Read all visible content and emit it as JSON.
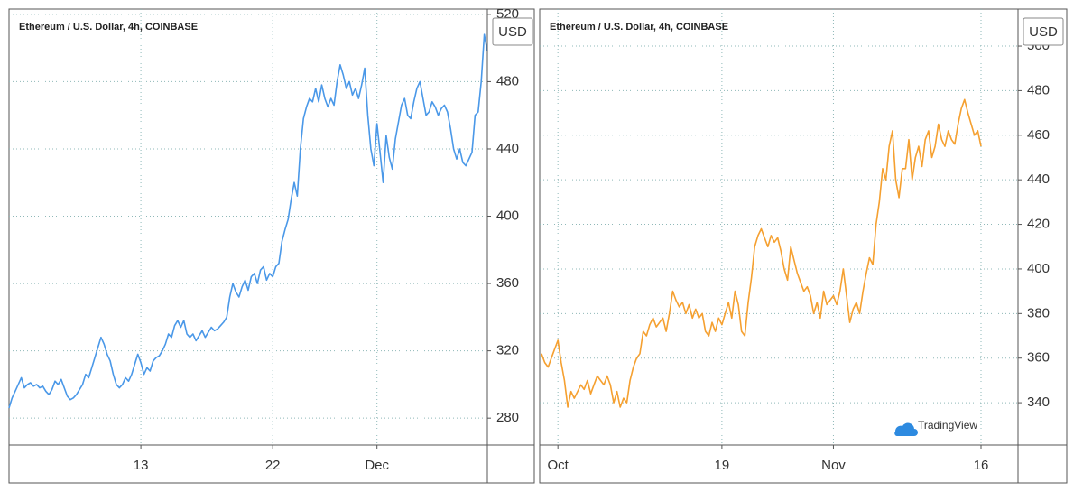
{
  "chart_data": [
    {
      "type": "line",
      "title": "Ethereum / U.S. Dollar, 4h, COINBASE",
      "unit": "USD",
      "color": "#4a98e8",
      "ylim": [
        264,
        521
      ],
      "yticks": [
        280,
        320,
        360,
        400,
        440,
        480,
        520
      ],
      "grid": true,
      "categories": [
        null,
        null,
        null,
        null,
        null,
        null,
        null,
        null,
        null,
        null,
        null,
        null,
        null,
        null,
        null,
        null,
        null,
        null,
        null,
        null,
        null,
        null,
        null,
        null,
        null,
        null,
        null,
        null,
        null,
        null,
        null,
        null,
        null,
        null,
        null,
        null,
        null,
        null,
        null,
        null,
        null,
        null,
        null,
        "13",
        null,
        null,
        null,
        null,
        null,
        null,
        null,
        null,
        null,
        null,
        null,
        null,
        null,
        null,
        null,
        null,
        null,
        null,
        null,
        null,
        null,
        null,
        null,
        null,
        null,
        null,
        null,
        null,
        null,
        null,
        null,
        null,
        null,
        null,
        null,
        null,
        null,
        null,
        null,
        null,
        null,
        null,
        "22",
        null,
        null,
        null,
        null,
        null,
        null,
        null,
        null,
        null,
        null,
        null,
        null,
        null,
        null,
        null,
        null,
        null,
        null,
        null,
        null,
        null,
        null,
        null,
        null,
        null,
        null,
        null,
        null,
        null,
        null,
        null,
        null,
        null,
        "Dec",
        null,
        null,
        null,
        null,
        null,
        null,
        null,
        null,
        null,
        null,
        null,
        null,
        null,
        null,
        null,
        null,
        null,
        null,
        null,
        null,
        null,
        null,
        null,
        null,
        null,
        null,
        null,
        null,
        null,
        null,
        null,
        null,
        null,
        null,
        null,
        null
      ],
      "values": [
        286,
        292,
        296,
        300,
        304,
        298,
        300,
        301,
        299,
        300,
        298,
        299,
        296,
        294,
        297,
        302,
        300,
        303,
        298,
        293,
        291,
        292,
        294,
        297,
        300,
        306,
        304,
        310,
        316,
        322,
        328,
        324,
        318,
        314,
        306,
        300,
        298,
        300,
        304,
        302,
        306,
        312,
        318,
        313,
        306,
        310,
        308,
        314,
        316,
        317,
        320,
        324,
        330,
        328,
        335,
        338,
        334,
        338,
        330,
        328,
        330,
        326,
        329,
        332,
        328,
        331,
        334,
        332,
        333,
        335,
        337,
        340,
        352,
        360,
        355,
        352,
        358,
        362,
        356,
        364,
        366,
        360,
        368,
        370,
        362,
        366,
        364,
        370,
        372,
        385,
        392,
        398,
        410,
        420,
        412,
        440,
        458,
        465,
        470,
        468,
        476,
        468,
        478,
        470,
        465,
        470,
        466,
        480,
        490,
        484,
        476,
        480,
        472,
        476,
        470,
        478,
        488,
        460,
        440,
        430,
        455,
        438,
        420,
        448,
        435,
        428,
        446,
        456,
        466,
        470,
        460,
        458,
        468,
        476,
        480,
        470,
        460,
        462,
        468,
        465,
        460,
        464,
        466,
        462,
        452,
        440,
        434,
        440,
        432,
        430,
        434,
        438,
        460,
        462,
        480,
        508,
        498
      ]
    },
    {
      "type": "line",
      "title": "Ethereum / U.S. Dollar, 4h, COINBASE",
      "unit": "USD",
      "color": "#f5a030",
      "watermark": "TradingView",
      "ylim": [
        321,
        515
      ],
      "yticks": [
        340,
        360,
        380,
        400,
        420,
        440,
        460,
        480,
        500
      ],
      "grid": true,
      "categories": [
        null,
        null,
        null,
        null,
        null,
        "Oct",
        null,
        null,
        null,
        null,
        null,
        null,
        null,
        null,
        null,
        null,
        null,
        null,
        null,
        null,
        null,
        null,
        null,
        null,
        null,
        null,
        null,
        null,
        null,
        null,
        null,
        null,
        null,
        null,
        null,
        null,
        null,
        null,
        null,
        null,
        null,
        null,
        null,
        null,
        null,
        null,
        null,
        null,
        null,
        null,
        null,
        null,
        null,
        null,
        null,
        "19",
        null,
        null,
        null,
        null,
        null,
        null,
        null,
        null,
        null,
        null,
        null,
        null,
        null,
        null,
        null,
        null,
        null,
        null,
        null,
        null,
        null,
        null,
        null,
        null,
        null,
        null,
        null,
        null,
        null,
        null,
        null,
        null,
        null,
        "Nov",
        null,
        null,
        null,
        null,
        null,
        null,
        null,
        null,
        null,
        null,
        null,
        null,
        null,
        null,
        null,
        null,
        null,
        null,
        null,
        null,
        null,
        null,
        null,
        null,
        null,
        null,
        null,
        null,
        null,
        null,
        null,
        null,
        null,
        null,
        null,
        null,
        null,
        null,
        null,
        null,
        null,
        null,
        null,
        null,
        "16"
      ],
      "values": [
        362,
        358,
        356,
        360,
        364,
        368,
        358,
        350,
        338,
        345,
        342,
        345,
        348,
        346,
        350,
        344,
        348,
        352,
        350,
        348,
        352,
        348,
        340,
        345,
        338,
        342,
        340,
        350,
        356,
        360,
        362,
        372,
        370,
        375,
        378,
        374,
        376,
        378,
        372,
        380,
        390,
        386,
        383,
        385,
        380,
        384,
        378,
        382,
        378,
        380,
        372,
        370,
        376,
        372,
        378,
        375,
        380,
        385,
        378,
        390,
        384,
        372,
        370,
        385,
        396,
        410,
        415,
        418,
        414,
        410,
        415,
        412,
        414,
        408,
        400,
        395,
        410,
        404,
        398,
        394,
        390,
        392,
        388,
        380,
        385,
        378,
        390,
        384,
        386,
        388,
        384,
        390,
        400,
        388,
        376,
        382,
        385,
        380,
        390,
        398,
        405,
        402,
        420,
        430,
        445,
        440,
        455,
        462,
        440,
        432,
        445,
        445,
        458,
        440,
        450,
        455,
        446,
        458,
        462,
        450,
        455,
        465,
        458,
        455,
        462,
        458,
        456,
        465,
        472,
        476,
        470,
        465,
        460,
        462,
        455
      ]
    }
  ]
}
